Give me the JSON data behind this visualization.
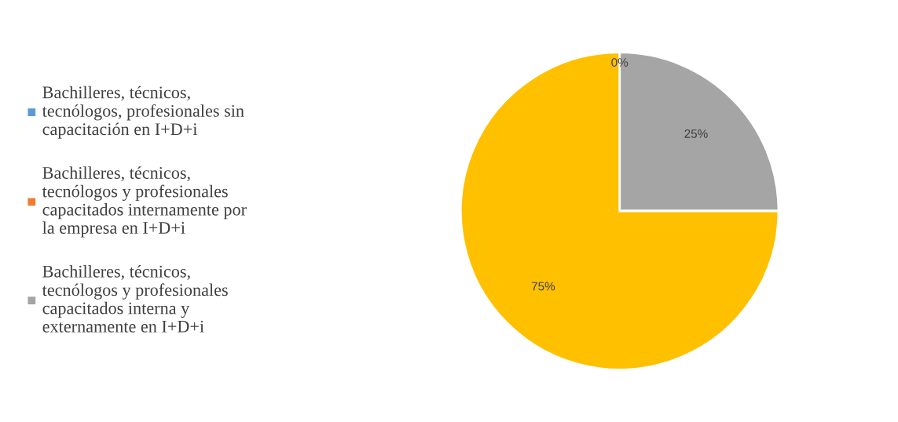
{
  "chart_data": {
    "type": "pie",
    "categories": [
      "Bachilleres, técnicos, tecnólogos, profesionales sin capacitación en I+D+i",
      "Bachilleres, técnicos, tecnólogos y profesionales capacitados internamente por la empresa en I+D+i",
      "Bachilleres, técnicos, tecnólogos y profesionales capacitados interna y externamente en I+D+i",
      null
    ],
    "values": [
      0,
      0,
      25,
      75
    ],
    "colors": [
      "#5b9bd5",
      "#ed7d31",
      "#a5a5a5",
      "#ffc000"
    ],
    "value_labels": [
      "0%",
      null,
      "25%",
      "75%"
    ],
    "legend": "left"
  }
}
